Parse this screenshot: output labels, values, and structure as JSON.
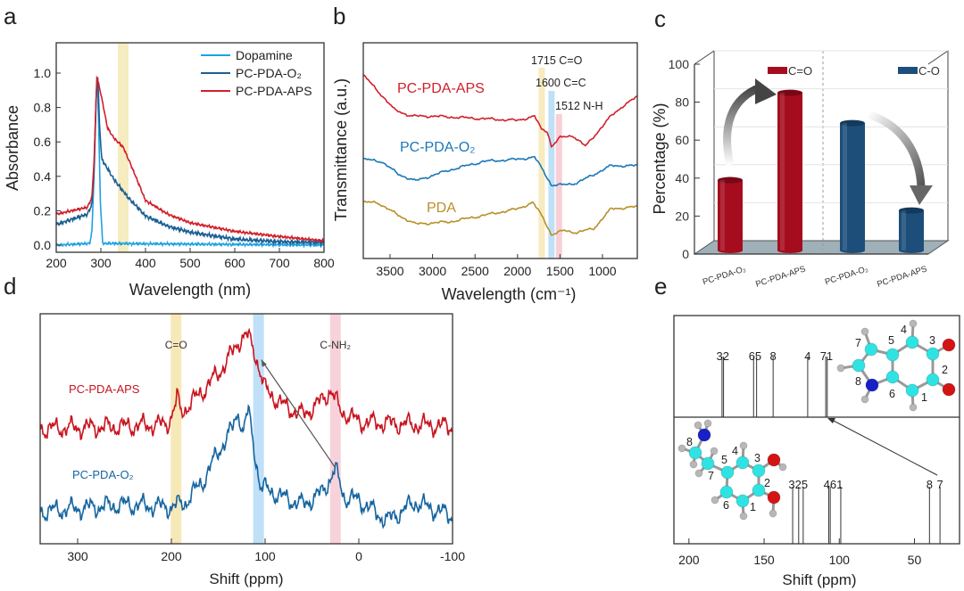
{
  "panel_labels": [
    "a",
    "b",
    "c",
    "d",
    "e"
  ],
  "chart_data": [
    {
      "id": "a",
      "type": "line",
      "xlabel": "Wavelength (nm)",
      "ylabel": "Absorbance",
      "xlim": [
        200,
        800
      ],
      "ylim": [
        -0.04,
        1.17
      ],
      "xticks": [
        "200",
        "300",
        "400",
        "500",
        "600",
        "700",
        "800"
      ],
      "yticks": [
        "0.0",
        "0.2",
        "0.4",
        "0.6",
        "0.8",
        "1.0"
      ],
      "highlight_band": [
        338,
        362
      ],
      "band_color": "#f5ecc0",
      "legend_position": "top-right",
      "series": [
        {
          "name": "Dopamine",
          "color": "#1ea2e0",
          "points": [
            [
              200,
              0.0
            ],
            [
              275,
              0.01
            ],
            [
              280,
              0.08
            ],
            [
              286,
              0.5
            ],
            [
              290,
              0.9
            ],
            [
              292,
              0.97
            ],
            [
              295,
              0.7
            ],
            [
              299,
              0.25
            ],
            [
              304,
              0.01
            ],
            [
              800,
              0.0
            ]
          ]
        },
        {
          "name": "PC-PDA-O₂",
          "color": "#1b5f93",
          "points": [
            [
              200,
              0.12
            ],
            [
              270,
              0.18
            ],
            [
              280,
              0.24
            ],
            [
              284,
              0.4
            ],
            [
              290,
              0.9
            ],
            [
              293,
              0.98
            ],
            [
              297,
              0.7
            ],
            [
              302,
              0.5
            ],
            [
              330,
              0.38
            ],
            [
              360,
              0.28
            ],
            [
              400,
              0.17
            ],
            [
              450,
              0.11
            ],
            [
              500,
              0.075
            ],
            [
              600,
              0.035
            ],
            [
              700,
              0.02
            ],
            [
              800,
              0.015
            ]
          ]
        },
        {
          "name": "PC-PDA-APS",
          "color": "#d0202a",
          "points": [
            [
              200,
              0.18
            ],
            [
              270,
              0.22
            ],
            [
              280,
              0.28
            ],
            [
              285,
              0.5
            ],
            [
              291,
              0.98
            ],
            [
              300,
              0.88
            ],
            [
              315,
              0.68
            ],
            [
              330,
              0.62
            ],
            [
              350,
              0.57
            ],
            [
              370,
              0.45
            ],
            [
              400,
              0.26
            ],
            [
              450,
              0.18
            ],
            [
              500,
              0.13
            ],
            [
              600,
              0.08
            ],
            [
              700,
              0.05
            ],
            [
              800,
              0.025
            ]
          ]
        }
      ]
    },
    {
      "id": "b",
      "type": "line",
      "xlabel": "Wavelength (cm⁻¹)",
      "ylabel": "Transmittance (a.u.)",
      "xlim": [
        3815,
        590
      ],
      "ylim": [
        0,
        100
      ],
      "xticks": [
        "3500",
        "3000",
        "2500",
        "2000",
        "1500",
        "1000"
      ],
      "xtick_values": [
        3500,
        3000,
        2500,
        2000,
        1500,
        1000
      ],
      "bands": [
        {
          "center": 1715,
          "label": "1715 C=O",
          "color": "#f7ecbf"
        },
        {
          "center": 1600,
          "label": "1600 C=C",
          "color": "#bfe0f7"
        },
        {
          "center": 1512,
          "label": "1512  N-H",
          "color": "#f8cfd6"
        }
      ],
      "series": [
        {
          "name": "PC-PDA-APS",
          "color": "#d0202a",
          "points": [
            [
              3815,
              85
            ],
            [
              3650,
              78
            ],
            [
              3450,
              69
            ],
            [
              3250,
              66
            ],
            [
              3000,
              66
            ],
            [
              2500,
              65
            ],
            [
              2000,
              64
            ],
            [
              1800,
              66
            ],
            [
              1720,
              60
            ],
            [
              1650,
              59
            ],
            [
              1600,
              52
            ],
            [
              1500,
              56
            ],
            [
              1350,
              57
            ],
            [
              1200,
              52
            ],
            [
              1050,
              59
            ],
            [
              900,
              66
            ],
            [
              750,
              71
            ],
            [
              590,
              75
            ]
          ]
        },
        {
          "name": "PC-PDA-O₂",
          "color": "#1b78b8",
          "points": [
            [
              3815,
              46
            ],
            [
              3600,
              45
            ],
            [
              3400,
              39
            ],
            [
              3200,
              36
            ],
            [
              2800,
              41
            ],
            [
              2400,
              45
            ],
            [
              2000,
              46
            ],
            [
              1800,
              47
            ],
            [
              1700,
              41
            ],
            [
              1600,
              34
            ],
            [
              1500,
              34
            ],
            [
              1300,
              35
            ],
            [
              1100,
              39
            ],
            [
              900,
              43
            ],
            [
              590,
              43
            ]
          ]
        },
        {
          "name": "PDA",
          "color": "#b8902a",
          "points": [
            [
              3815,
              26
            ],
            [
              3650,
              26
            ],
            [
              3400,
              20
            ],
            [
              3200,
              16
            ],
            [
              2800,
              17
            ],
            [
              2400,
              20
            ],
            [
              2000,
              23
            ],
            [
              1820,
              26
            ],
            [
              1700,
              19
            ],
            [
              1600,
              11
            ],
            [
              1450,
              13
            ],
            [
              1300,
              12
            ],
            [
              1100,
              14
            ],
            [
              900,
              23
            ],
            [
              590,
              24
            ]
          ]
        }
      ]
    },
    {
      "id": "c",
      "type": "bar",
      "ylabel": "Percentage (%)",
      "ylim": [
        0,
        100
      ],
      "yticks": [
        "0",
        "20",
        "40",
        "60",
        "80",
        "100"
      ],
      "categories": [
        "PC-PDA-O₂",
        "PC-PDA-APS",
        "PC-PDA-O₂",
        "PC-PDA-APS"
      ],
      "series": [
        {
          "name": "C=O",
          "color": "#a50d1f",
          "values": [
            38,
            84,
            null,
            null
          ]
        },
        {
          "name": "C-O",
          "color": "#1d4e7a",
          "values": [
            null,
            null,
            68,
            22
          ]
        }
      ],
      "legend_position": "top"
    },
    {
      "id": "d",
      "type": "line",
      "xlabel": "Shift (ppm)",
      "xlim": [
        340,
        -100
      ],
      "ylim": [
        0,
        100
      ],
      "xticks": [
        "300",
        "200",
        "100",
        "0",
        "-100"
      ],
      "xtick_values": [
        300,
        200,
        100,
        0,
        -100
      ],
      "bands": [
        {
          "center": 195,
          "label": "C=O",
          "color": "#f7e8b8"
        },
        {
          "center": 107,
          "label": "",
          "color": "#bfe0f7"
        },
        {
          "center": 25,
          "label": "C-NH₂",
          "color": "#f8d2da"
        }
      ],
      "arrow": {
        "from": [
          25,
          33
        ],
        "to": [
          104,
          80
        ]
      },
      "series": [
        {
          "name": "PC-PDA-APS",
          "color": "#c8141e",
          "points": [
            [
              340,
              50
            ],
            [
              250,
              51
            ],
            [
              205,
              52
            ],
            [
              197,
              58
            ],
            [
              194,
              64
            ],
            [
              190,
              57
            ],
            [
              170,
              65
            ],
            [
              150,
              74
            ],
            [
              135,
              83
            ],
            [
              125,
              90
            ],
            [
              118,
              90
            ],
            [
              110,
              82
            ],
            [
              100,
              67
            ],
            [
              80,
              60
            ],
            [
              60,
              56
            ],
            [
              40,
              62
            ],
            [
              30,
              67
            ],
            [
              20,
              58
            ],
            [
              0,
              53
            ],
            [
              -100,
              51
            ]
          ]
        },
        {
          "name": "PC-PDA-O₂",
          "color": "#1565a0",
          "points": [
            [
              340,
              14
            ],
            [
              250,
              17
            ],
            [
              200,
              16
            ],
            [
              185,
              18
            ],
            [
              165,
              28
            ],
            [
              150,
              40
            ],
            [
              135,
              50
            ],
            [
              128,
              58
            ],
            [
              124,
              48
            ],
            [
              118,
              58
            ],
            [
              112,
              42
            ],
            [
              105,
              25
            ],
            [
              80,
              20
            ],
            [
              60,
              17
            ],
            [
              40,
              22
            ],
            [
              25,
              32
            ],
            [
              15,
              20
            ],
            [
              0,
              19
            ],
            [
              -30,
              10
            ],
            [
              -60,
              18
            ],
            [
              -100,
              12
            ]
          ]
        }
      ]
    },
    {
      "id": "e",
      "type": "stick",
      "xlabel": "Shift (ppm)",
      "xlim": [
        210,
        20
      ],
      "xticks": [
        "200",
        "150",
        "100",
        "50"
      ],
      "xtick_values": [
        200,
        150,
        100,
        50
      ],
      "top_sticks": [
        {
          "label": "32",
          "positions": [
            178,
            177
          ]
        },
        {
          "label": "65",
          "positions": [
            157,
            155
          ]
        },
        {
          "label": "8",
          "positions": [
            144
          ]
        },
        {
          "label": "4",
          "positions": [
            121
          ]
        },
        {
          "label": "71",
          "positions": [
            109,
            108
          ]
        }
      ],
      "bottom_sticks": [
        {
          "label": "325",
          "positions": [
            131,
            127,
            124
          ]
        },
        {
          "label": "461",
          "positions": [
            107,
            106,
            99
          ]
        },
        {
          "label": "8",
          "positions": [
            40
          ]
        },
        {
          "label": "7",
          "positions": [
            33
          ]
        }
      ],
      "top_molecule_labels": [
        "1",
        "2",
        "3",
        "4",
        "5",
        "6",
        "7",
        "8"
      ],
      "bottom_molecule_labels": [
        "1",
        "2",
        "3",
        "4",
        "5",
        "6",
        "7",
        "8"
      ],
      "atom_colors": {
        "C": "#2fe3e3",
        "O": "#d41414",
        "N": "#1820c8",
        "H": "#b8b8b8"
      }
    }
  ]
}
